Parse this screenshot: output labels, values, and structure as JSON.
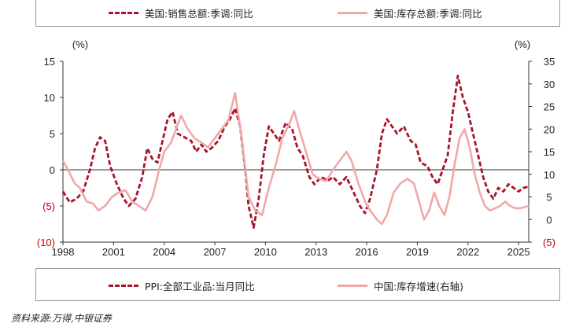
{
  "legend_top": {
    "item1": "美国:销售总额:季调:同比",
    "item2": "美国:库存总额:季调:同比"
  },
  "legend_bottom": {
    "item1": "PPI:全部工业品:当月同比",
    "item2": "中国:库存增速(右轴)"
  },
  "source": "资料来源:万得,中银证券",
  "colors": {
    "us_sales": "#a8142c",
    "us_inventory": "#f0a8a8",
    "neg_tick": "#c00000",
    "axis": "#333333"
  },
  "chart_data": {
    "type": "line",
    "left_axis": {
      "unit": "(%)",
      "ylim": [
        -10,
        15
      ],
      "ticks": [
        15,
        10,
        5,
        0,
        -5,
        -10
      ],
      "tick_labels": [
        "15",
        "10",
        "5",
        "0",
        "(5)",
        "(10)"
      ]
    },
    "right_axis": {
      "unit": "(%)",
      "ylim": [
        -5,
        35
      ],
      "ticks": [
        35,
        30,
        25,
        20,
        15,
        10,
        5,
        0,
        -5
      ],
      "tick_labels": [
        "35",
        "30",
        "25",
        "20",
        "15",
        "10",
        "5",
        "0",
        "(5)"
      ]
    },
    "x_axis": {
      "xlim": [
        1998,
        2025.6
      ],
      "ticks": [
        1998,
        2001,
        2004,
        2007,
        2010,
        2013,
        2016,
        2019,
        2022,
        2025
      ],
      "tick_labels": [
        "1998",
        "2001",
        "2004",
        "2007",
        "2010",
        "2013",
        "2016",
        "2019",
        "2022",
        "2025"
      ]
    },
    "series": [
      {
        "name": "美国:销售总额:季调:同比",
        "axis": "left",
        "style": "dashed",
        "color": "#a8142c",
        "points": [
          [
            1998,
            -3
          ],
          [
            1998.4,
            -4.5
          ],
          [
            1998.8,
            -4
          ],
          [
            1999.2,
            -3
          ],
          [
            1999.6,
            0
          ],
          [
            1999.9,
            3
          ],
          [
            2000.2,
            4.5
          ],
          [
            2000.5,
            4
          ],
          [
            2000.8,
            0.5
          ],
          [
            2001.2,
            -2
          ],
          [
            2001.6,
            -4
          ],
          [
            2001.9,
            -5
          ],
          [
            2002.3,
            -4
          ],
          [
            2002.7,
            -1
          ],
          [
            2003,
            3
          ],
          [
            2003.3,
            1.5
          ],
          [
            2003.6,
            1
          ],
          [
            2003.9,
            4
          ],
          [
            2004.2,
            7
          ],
          [
            2004.5,
            8
          ],
          [
            2004.8,
            5
          ],
          [
            2005.2,
            4.5
          ],
          [
            2005.6,
            4
          ],
          [
            2005.9,
            2.5
          ],
          [
            2006.2,
            3.5
          ],
          [
            2006.5,
            2.5
          ],
          [
            2006.8,
            3
          ],
          [
            2007.2,
            4
          ],
          [
            2007.6,
            6
          ],
          [
            2007.9,
            7
          ],
          [
            2008.2,
            8.5
          ],
          [
            2008.5,
            6
          ],
          [
            2008.8,
            0
          ],
          [
            2009,
            -5
          ],
          [
            2009.3,
            -8
          ],
          [
            2009.6,
            -4
          ],
          [
            2009.9,
            2
          ],
          [
            2010.2,
            6
          ],
          [
            2010.5,
            5
          ],
          [
            2010.8,
            4
          ],
          [
            2011.2,
            6.5
          ],
          [
            2011.6,
            5.5
          ],
          [
            2011.9,
            3
          ],
          [
            2012.2,
            2
          ],
          [
            2012.6,
            -1
          ],
          [
            2012.9,
            -2
          ],
          [
            2013.3,
            -1
          ],
          [
            2013.7,
            -1.5
          ],
          [
            2014,
            -1
          ],
          [
            2014.4,
            -2
          ],
          [
            2014.8,
            -1
          ],
          [
            2015.2,
            -3
          ],
          [
            2015.6,
            -5
          ],
          [
            2015.9,
            -6
          ],
          [
            2016.2,
            -4
          ],
          [
            2016.6,
            0
          ],
          [
            2016.9,
            5
          ],
          [
            2017.2,
            7
          ],
          [
            2017.5,
            6
          ],
          [
            2017.8,
            5
          ],
          [
            2018.2,
            6
          ],
          [
            2018.6,
            4
          ],
          [
            2018.9,
            3.5
          ],
          [
            2019.2,
            1
          ],
          [
            2019.6,
            0.5
          ],
          [
            2019.9,
            -1
          ],
          [
            2020.2,
            -2
          ],
          [
            2020.5,
            0
          ],
          [
            2020.8,
            2
          ],
          [
            2021.1,
            8
          ],
          [
            2021.4,
            13
          ],
          [
            2021.7,
            10
          ],
          [
            2022,
            8
          ],
          [
            2022.3,
            5
          ],
          [
            2022.6,
            2
          ],
          [
            2022.9,
            -1
          ],
          [
            2023.2,
            -3
          ],
          [
            2023.5,
            -4
          ],
          [
            2023.8,
            -2.5
          ],
          [
            2024.1,
            -3
          ],
          [
            2024.4,
            -2
          ],
          [
            2024.7,
            -2.5
          ],
          [
            2025,
            -3
          ],
          [
            2025.3,
            -2.5
          ],
          [
            2025.6,
            -2.3
          ]
        ]
      },
      {
        "name": "美国:库存总额:季调:同比",
        "axis": "right",
        "style": "solid",
        "color": "#f0a8a8",
        "points": [
          [
            1998,
            13
          ],
          [
            1998.3,
            11
          ],
          [
            1998.7,
            8
          ],
          [
            1999,
            7
          ],
          [
            1999.4,
            4
          ],
          [
            1999.8,
            3.5
          ],
          [
            2000.1,
            2
          ],
          [
            2000.5,
            3
          ],
          [
            2000.9,
            5
          ],
          [
            2001.3,
            6
          ],
          [
            2001.7,
            6.5
          ],
          [
            2002.1,
            4
          ],
          [
            2002.5,
            3
          ],
          [
            2002.9,
            2
          ],
          [
            2003.3,
            5
          ],
          [
            2003.7,
            11
          ],
          [
            2004,
            15
          ],
          [
            2004.4,
            17
          ],
          [
            2004.7,
            20
          ],
          [
            2005,
            23
          ],
          [
            2005.4,
            20
          ],
          [
            2005.8,
            18
          ],
          [
            2006.2,
            17
          ],
          [
            2006.6,
            16
          ],
          [
            2007,
            18
          ],
          [
            2007.4,
            20
          ],
          [
            2007.8,
            22
          ],
          [
            2008.2,
            28
          ],
          [
            2008.6,
            18
          ],
          [
            2009,
            5
          ],
          [
            2009.4,
            2
          ],
          [
            2009.8,
            1
          ],
          [
            2010.2,
            7
          ],
          [
            2010.6,
            12
          ],
          [
            2011,
            18
          ],
          [
            2011.4,
            21
          ],
          [
            2011.7,
            24
          ],
          [
            2012,
            20
          ],
          [
            2012.4,
            15
          ],
          [
            2012.8,
            10
          ],
          [
            2013.2,
            9
          ],
          [
            2013.6,
            8.5
          ],
          [
            2014,
            11
          ],
          [
            2014.4,
            13
          ],
          [
            2014.8,
            15
          ],
          [
            2015.1,
            13
          ],
          [
            2015.5,
            8
          ],
          [
            2015.9,
            4
          ],
          [
            2016.2,
            2
          ],
          [
            2016.6,
            0
          ],
          [
            2016.9,
            -1
          ],
          [
            2017.2,
            1
          ],
          [
            2017.6,
            6
          ],
          [
            2018,
            8
          ],
          [
            2018.4,
            9
          ],
          [
            2018.8,
            8
          ],
          [
            2019.1,
            4
          ],
          [
            2019.4,
            0
          ],
          [
            2019.7,
            2
          ],
          [
            2020,
            6
          ],
          [
            2020.3,
            3
          ],
          [
            2020.6,
            1
          ],
          [
            2020.9,
            5
          ],
          [
            2021.2,
            12
          ],
          [
            2021.5,
            18
          ],
          [
            2021.8,
            20
          ],
          [
            2022.1,
            16
          ],
          [
            2022.4,
            10
          ],
          [
            2022.7,
            6
          ],
          [
            2023,
            3
          ],
          [
            2023.3,
            2
          ],
          [
            2023.6,
            2.5
          ],
          [
            2023.9,
            3
          ],
          [
            2024.2,
            4
          ],
          [
            2024.5,
            3
          ],
          [
            2024.8,
            2.5
          ],
          [
            2025.1,
            2.5
          ],
          [
            2025.6,
            3
          ]
        ]
      },
      {
        "name": "PPI:全部工业品:当月同比",
        "axis": "left",
        "style": "dashed",
        "color": "#a8142c",
        "points": []
      },
      {
        "name": "中国:库存增速(右轴)",
        "axis": "right",
        "style": "solid",
        "color": "#f0a8a8",
        "points": []
      }
    ]
  }
}
